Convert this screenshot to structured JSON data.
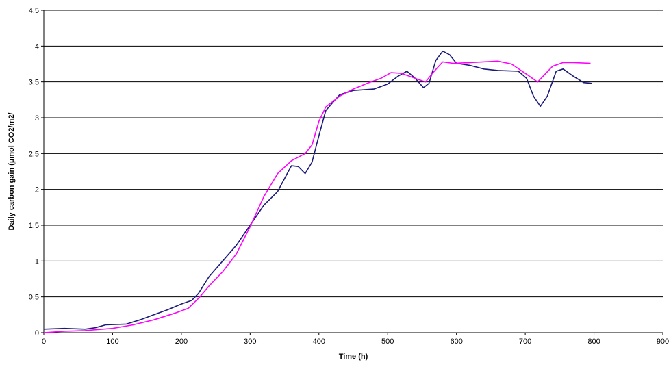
{
  "chart_data": {
    "type": "line",
    "title": "",
    "xlabel": "Time (h)",
    "ylabel": "Daily carbon gain (µmol CO2/m2/",
    "xlim": [
      0,
      900
    ],
    "ylim": [
      0,
      4.5
    ],
    "x_ticks": [
      "0",
      "100",
      "200",
      "300",
      "400",
      "500",
      "600",
      "700",
      "800",
      "900"
    ],
    "y_ticks": [
      "0",
      "0.5",
      "1",
      "1.5",
      "2",
      "2.5",
      "3",
      "3.5",
      "4",
      "4.5"
    ],
    "grid": "horizontal",
    "legend": "none",
    "series": [
      {
        "color": "#1a1a7a",
        "points": [
          [
            0,
            0.05
          ],
          [
            30,
            0.06
          ],
          [
            60,
            0.05
          ],
          [
            75,
            0.07
          ],
          [
            90,
            0.11
          ],
          [
            120,
            0.12
          ],
          [
            140,
            0.18
          ],
          [
            160,
            0.25
          ],
          [
            180,
            0.32
          ],
          [
            200,
            0.4
          ],
          [
            215,
            0.45
          ],
          [
            225,
            0.55
          ],
          [
            240,
            0.78
          ],
          [
            260,
            1.0
          ],
          [
            280,
            1.22
          ],
          [
            300,
            1.5
          ],
          [
            320,
            1.78
          ],
          [
            340,
            1.97
          ],
          [
            360,
            2.33
          ],
          [
            370,
            2.32
          ],
          [
            380,
            2.22
          ],
          [
            390,
            2.38
          ],
          [
            400,
            2.75
          ],
          [
            410,
            3.1
          ],
          [
            430,
            3.32
          ],
          [
            450,
            3.38
          ],
          [
            480,
            3.4
          ],
          [
            500,
            3.47
          ],
          [
            515,
            3.58
          ],
          [
            528,
            3.65
          ],
          [
            540,
            3.55
          ],
          [
            552,
            3.42
          ],
          [
            560,
            3.48
          ],
          [
            570,
            3.8
          ],
          [
            580,
            3.93
          ],
          [
            590,
            3.88
          ],
          [
            600,
            3.76
          ],
          [
            620,
            3.73
          ],
          [
            640,
            3.68
          ],
          [
            660,
            3.66
          ],
          [
            690,
            3.65
          ],
          [
            702,
            3.55
          ],
          [
            712,
            3.3
          ],
          [
            722,
            3.16
          ],
          [
            732,
            3.3
          ],
          [
            745,
            3.65
          ],
          [
            755,
            3.68
          ],
          [
            770,
            3.58
          ],
          [
            785,
            3.49
          ],
          [
            797,
            3.48
          ]
        ]
      },
      {
        "color": "#ff00ff",
        "points": [
          [
            0,
            0.0
          ],
          [
            30,
            0.02
          ],
          [
            60,
            0.03
          ],
          [
            100,
            0.06
          ],
          [
            130,
            0.11
          ],
          [
            160,
            0.18
          ],
          [
            190,
            0.27
          ],
          [
            210,
            0.34
          ],
          [
            225,
            0.48
          ],
          [
            240,
            0.65
          ],
          [
            260,
            0.85
          ],
          [
            280,
            1.1
          ],
          [
            300,
            1.48
          ],
          [
            320,
            1.9
          ],
          [
            340,
            2.22
          ],
          [
            360,
            2.4
          ],
          [
            380,
            2.5
          ],
          [
            390,
            2.62
          ],
          [
            400,
            2.95
          ],
          [
            410,
            3.15
          ],
          [
            430,
            3.3
          ],
          [
            450,
            3.4
          ],
          [
            470,
            3.48
          ],
          [
            490,
            3.55
          ],
          [
            505,
            3.63
          ],
          [
            520,
            3.62
          ],
          [
            540,
            3.55
          ],
          [
            555,
            3.5
          ],
          [
            565,
            3.62
          ],
          [
            580,
            3.78
          ],
          [
            595,
            3.76
          ],
          [
            620,
            3.77
          ],
          [
            660,
            3.79
          ],
          [
            680,
            3.75
          ],
          [
            700,
            3.62
          ],
          [
            718,
            3.5
          ],
          [
            730,
            3.62
          ],
          [
            740,
            3.72
          ],
          [
            755,
            3.77
          ],
          [
            770,
            3.77
          ],
          [
            795,
            3.76
          ]
        ]
      }
    ]
  }
}
